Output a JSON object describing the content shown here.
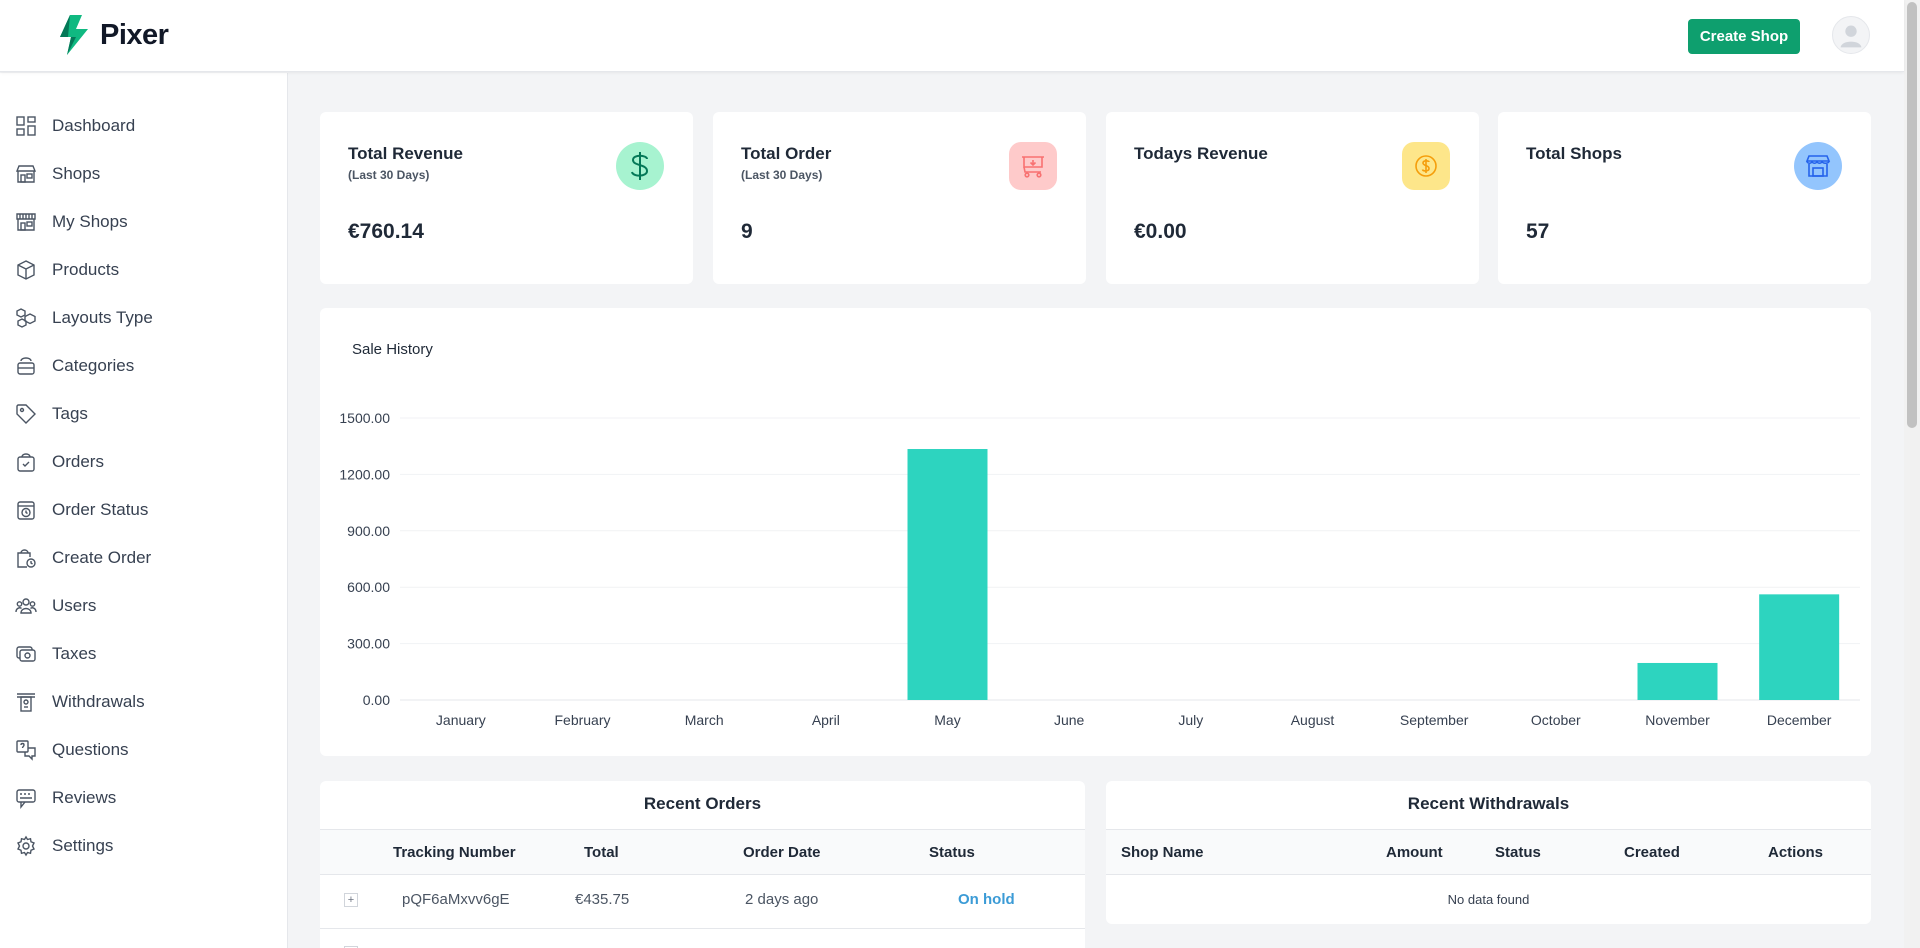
{
  "header": {
    "logo_text": "Pixer",
    "create_shop_label": "Create Shop"
  },
  "sidebar": {
    "items": [
      {
        "label": "Dashboard",
        "icon": "dashboard-icon"
      },
      {
        "label": "Shops",
        "icon": "store-icon"
      },
      {
        "label": "My Shops",
        "icon": "my-shops-icon"
      },
      {
        "label": "Products",
        "icon": "box-icon"
      },
      {
        "label": "Layouts Type",
        "icon": "layouts-icon"
      },
      {
        "label": "Categories",
        "icon": "categories-icon"
      },
      {
        "label": "Tags",
        "icon": "tag-icon"
      },
      {
        "label": "Orders",
        "icon": "orders-icon"
      },
      {
        "label": "Order Status",
        "icon": "order-status-icon"
      },
      {
        "label": "Create Order",
        "icon": "create-order-icon"
      },
      {
        "label": "Users",
        "icon": "users-icon"
      },
      {
        "label": "Taxes",
        "icon": "taxes-icon"
      },
      {
        "label": "Withdrawals",
        "icon": "withdrawals-icon"
      },
      {
        "label": "Questions",
        "icon": "questions-icon"
      },
      {
        "label": "Reviews",
        "icon": "reviews-icon"
      },
      {
        "label": "Settings",
        "icon": "settings-icon"
      }
    ]
  },
  "stats": [
    {
      "title": "Total Revenue",
      "subtitle": "(Last 30 Days)",
      "value": "€760.14",
      "icon": "dollar-icon",
      "icon_bg": "#a7f3d0",
      "icon_color": "#047857"
    },
    {
      "title": "Total Order",
      "subtitle": "(Last 30 Days)",
      "value": "9",
      "icon": "cart-icon",
      "icon_bg": "#fecaca",
      "icon_color": "#f87171"
    },
    {
      "title": "Todays Revenue",
      "subtitle": "",
      "value": "€0.00",
      "icon": "coin-icon",
      "icon_bg": "#fde68a",
      "icon_color": "#f59e0b"
    },
    {
      "title": "Total Shops",
      "subtitle": "",
      "value": "57",
      "icon": "shop-icon",
      "icon_bg": "#93c5fd",
      "icon_color": "#2563eb"
    }
  ],
  "chart": {
    "title": "Sale History"
  },
  "chart_data": {
    "type": "bar",
    "title": "Sale History",
    "categories": [
      "January",
      "February",
      "March",
      "April",
      "May",
      "June",
      "July",
      "August",
      "September",
      "October",
      "November",
      "December"
    ],
    "values": [
      0,
      0,
      0,
      0,
      1335,
      0,
      0,
      0,
      0,
      0,
      197,
      562
    ],
    "ylim": [
      0,
      1500
    ],
    "yticks": [
      "0.00",
      "300.00",
      "600.00",
      "900.00",
      "1200.00",
      "1500.00"
    ],
    "grid": true,
    "color": "#2dd4bf"
  },
  "recent_orders": {
    "title": "Recent Orders",
    "columns": [
      "Tracking Number",
      "Total",
      "Order Date",
      "Status"
    ],
    "rows": [
      {
        "tracking": "pQF6aMxvv6gE",
        "total": "€435.75",
        "date": "2 days ago",
        "status": "On hold"
      }
    ]
  },
  "recent_withdrawals": {
    "title": "Recent Withdrawals",
    "columns": [
      "Shop Name",
      "Amount",
      "Status",
      "Created",
      "Actions"
    ],
    "empty_text": "No data found"
  },
  "colors": {
    "accent": "#0e9f6e",
    "status_on_hold": "#3b9bd6"
  }
}
